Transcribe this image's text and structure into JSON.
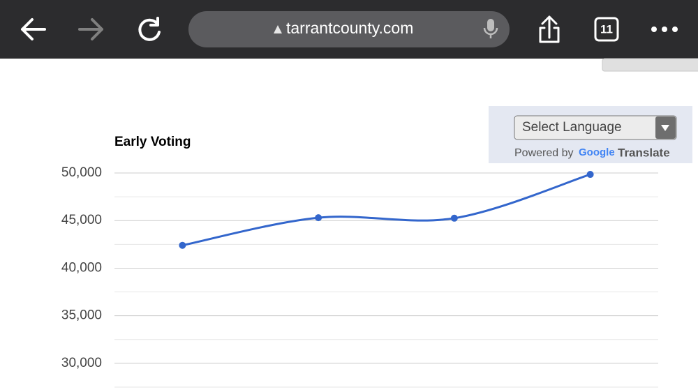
{
  "browser": {
    "url": "tarrantcounty.com",
    "tab_count": "11"
  },
  "translate": {
    "select": "Select Language",
    "powered_by": "Powered by",
    "google": "Google",
    "translate": "Translate"
  },
  "chart_data": {
    "type": "line",
    "title": "Early Voting",
    "categories": [
      null,
      null,
      null,
      null
    ],
    "series": [
      {
        "name": "Early Voting",
        "color": "#3366cc",
        "values": [
          42400,
          45300,
          45250,
          49850
        ]
      }
    ],
    "ylim": [
      27500,
      50000
    ],
    "yticks": [
      {
        "value": 30000,
        "label": "30,000"
      },
      {
        "value": 35000,
        "label": "35,000"
      },
      {
        "value": 40000,
        "label": "40,000"
      },
      {
        "value": 45000,
        "label": "45,000"
      },
      {
        "value": 50000,
        "label": "50,000"
      }
    ],
    "minor_yticks": [
      27500,
      32500,
      37500,
      42500,
      47500
    ],
    "grid": true,
    "smooth": true
  }
}
